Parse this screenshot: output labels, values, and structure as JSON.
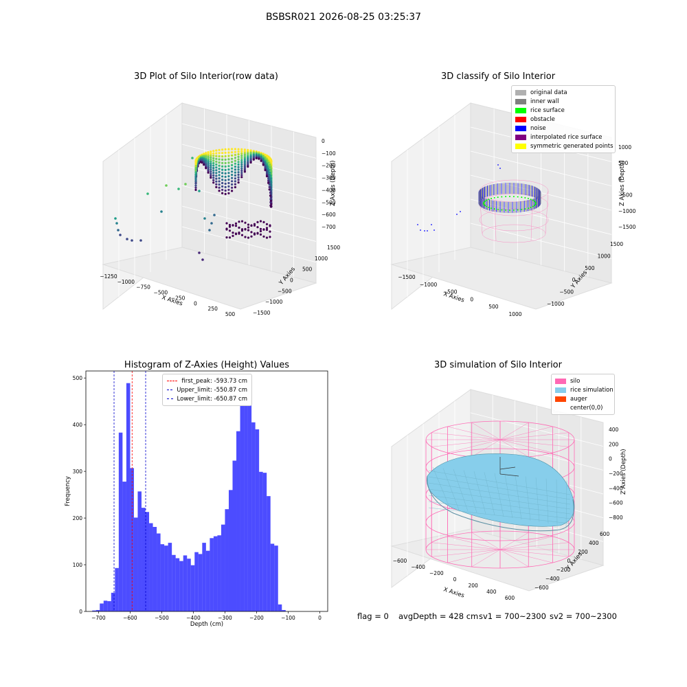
{
  "suptitle": "BSBSR021 2026-08-25 03:25:37",
  "panels": {
    "raw": {
      "title": "3D Plot of Silo Interior(row data)",
      "xlabel": "X Axies",
      "ylabel": "Y Axies",
      "zlabel": "Z Axies (Depth)",
      "xticks": [
        "−1250",
        "−1000",
        "−750",
        "−500",
        "−250",
        "0",
        "250",
        "500"
      ],
      "yticks": [
        "−1500",
        "−1000",
        "−500",
        "0",
        "500",
        "1000",
        "1500"
      ],
      "zticks": [
        "0",
        "−100",
        "−200",
        "−300",
        "−400",
        "−500",
        "−600",
        "−700"
      ]
    },
    "classify": {
      "title": "3D classify of Silo Interior",
      "xlabel": "X Axies",
      "ylabel": "Y Axies",
      "zlabel": "Z Axies (Depth)",
      "xticks": [
        "−1500",
        "−1000",
        "−500",
        "0",
        "500",
        "1000"
      ],
      "yticks": [
        "−1000",
        "−500",
        "0",
        "500",
        "1000",
        "1500"
      ],
      "zticks": [
        "1000",
        "500",
        "0",
        "−500",
        "−1000",
        "−1500"
      ],
      "legend": [
        {
          "label": "original data",
          "color": "#b0b0b0"
        },
        {
          "label": "inner wall",
          "color": "#808080"
        },
        {
          "label": "rice surface",
          "color": "#00ff00"
        },
        {
          "label": "obstacle",
          "color": "#ff0000"
        },
        {
          "label": "noise",
          "color": "#0000ff"
        },
        {
          "label": "interpolated rice surface",
          "color": "#800080"
        },
        {
          "label": "symmetric generated points",
          "color": "#ffff00"
        }
      ]
    },
    "simulation": {
      "title": "3D simulation of Silo Interior",
      "xlabel": "X Axies",
      "ylabel": "Y Axies",
      "zlabel": "Z Axies (Depth)",
      "xticks": [
        "−600",
        "−400",
        "−200",
        "0",
        "200",
        "400",
        "600"
      ],
      "yticks": [
        "−600",
        "−400",
        "−200",
        "0",
        "200",
        "400",
        "600"
      ],
      "zticks": [
        "400",
        "200",
        "0",
        "−200",
        "−400",
        "−600",
        "−800"
      ],
      "legend": [
        {
          "label": "silo",
          "color": "#ff69b4"
        },
        {
          "label": "rice simulation",
          "color": "#87ceeb"
        },
        {
          "label": "auger",
          "color": "#ff4500"
        },
        {
          "label": "center(0,0)",
          "color": "#ffffff"
        }
      ]
    }
  },
  "chart_data": {
    "type": "bar",
    "title": "Histogram of Z-Axies (Height) Values",
    "xlabel": "Depth (cm)",
    "ylabel": "Frequency",
    "xlim": [
      -740,
      25
    ],
    "ylim": [
      0,
      515
    ],
    "xticks": [
      -700,
      -600,
      -500,
      -400,
      -300,
      -200,
      -100,
      0
    ],
    "yticks": [
      0,
      100,
      200,
      300,
      400,
      500
    ],
    "bar_color": "#0000ff",
    "bin_start": -720,
    "bin_width": 12,
    "values": [
      2,
      3,
      17,
      23,
      22,
      40,
      93,
      383,
      278,
      489,
      307,
      201,
      257,
      222,
      213,
      189,
      181,
      167,
      144,
      141,
      147,
      121,
      114,
      108,
      120,
      113,
      99,
      127,
      123,
      147,
      130,
      157,
      161,
      163,
      186,
      219,
      260,
      323,
      386,
      464,
      472,
      449,
      405,
      390,
      299,
      297,
      247,
      145,
      141,
      15,
      3
    ],
    "reference_lines": [
      {
        "label": "first_peak: -593.73 cm",
        "x": -593.73,
        "color": "#ff0000"
      },
      {
        "label": "Upper_limit: -550.87 cm",
        "x": -550.87,
        "color": "#0000cc"
      },
      {
        "label": "Lower_limit: -650.87 cm",
        "x": -650.87,
        "color": "#0000cc"
      }
    ]
  },
  "status": {
    "flag": "flag = 0",
    "avg_depth": "avgDepth = 428 cm",
    "sv1": "sv1 = 700~2300",
    "sv2": "sv2 = 700~2300"
  }
}
